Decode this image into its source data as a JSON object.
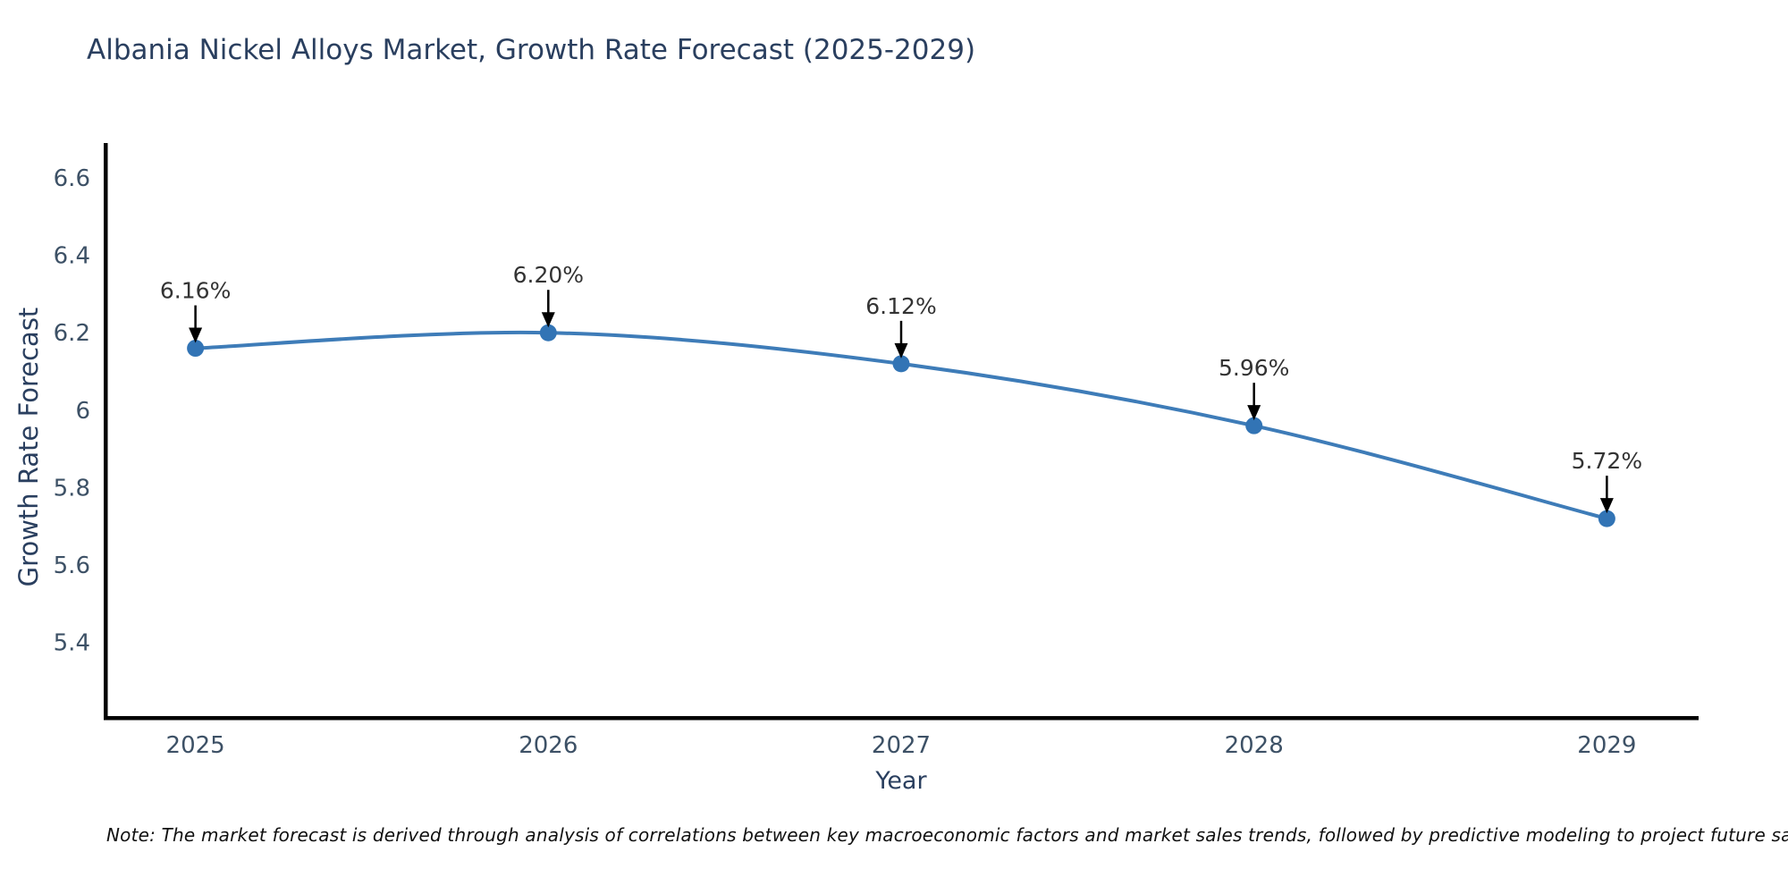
{
  "chart_data": {
    "type": "line",
    "title": "Albania Nickel Alloys Market, Growth Rate Forecast (2025-2029)",
    "xlabel": "Year",
    "ylabel": "Growth Rate Forecast",
    "x": [
      2025,
      2026,
      2027,
      2028,
      2029
    ],
    "series": [
      {
        "name": "Growth Rate Forecast",
        "values": [
          6.16,
          6.2,
          6.12,
          5.96,
          5.72
        ]
      }
    ],
    "point_labels": [
      "6.16%",
      "6.20%",
      "6.12%",
      "5.96%",
      "5.72%"
    ],
    "xtick_labels": [
      "2025",
      "2026",
      "2027",
      "2028",
      "2029"
    ],
    "yticks": [
      5.4,
      5.6,
      5.8,
      6,
      6.2,
      6.4,
      6.6
    ],
    "ytick_labels": [
      "5.4",
      "5.6",
      "5.8",
      "6",
      "6.2",
      "6.4",
      "6.6"
    ],
    "xlim": [
      2024.74,
      2029.26
    ],
    "ylim": [
      5.21,
      6.69
    ],
    "grid": false,
    "legend": "none",
    "line_color": "#3e7cb8",
    "marker_color": "#3274b5",
    "annotation_text_color": "#333333",
    "annotation_arrow_color": "#000000",
    "spine_color": "#000000",
    "tick_label_color": "#3d5166",
    "axis_title_color": "#2a3f5f"
  },
  "note": "Note: The market forecast is derived through analysis of correlations between key macroeconomic factors and market sales trends, followed by predictive modeling to project future sales"
}
